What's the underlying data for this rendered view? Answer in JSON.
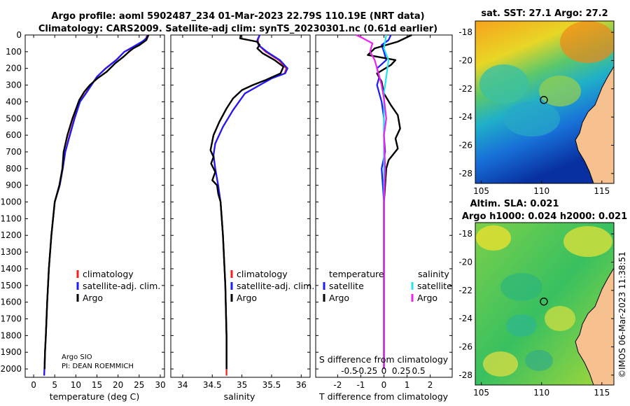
{
  "header": {
    "line1": "Argo profile: aoml 5902487_234 01-Mar-2023 22.79S 110.19E (NRT data)",
    "line2": "Climatology: CARS2009. Satellite-adj clim: synTS_20230301.nc (0.61d earlier)"
  },
  "colors": {
    "climatology": "#ff1a1a",
    "satellite_adj": "#1a1aff",
    "argo": "#000000",
    "satellite_s": "#22e4ee",
    "argo_s": "#ee22ee"
  },
  "legends": {
    "temp": [
      "climatology",
      "satellite-adj. clim.",
      "Argo"
    ],
    "sal": [
      "climatology",
      "satellite-adj. clim.",
      "Argo"
    ],
    "diff_t_header": "temperature",
    "diff_s_header": "salinity",
    "diff_t": [
      "satellite",
      "Argo"
    ],
    "diff_s": [
      "satellite",
      "Argo"
    ]
  },
  "credit": {
    "line1": "Argo SIO",
    "line2": "PI: DEAN ROEMMICH"
  },
  "sst_title": "sat. SST: 27.1 Argo: 27.2",
  "sla_title1": "Altim. SLA: 0.021",
  "sla_title2": "Argo h1000: 0.024 h2000: 0.021",
  "stamp": "©IMOS 06-Mar-2023 11:38:51",
  "chart_data": [
    {
      "type": "line",
      "id": "temperature",
      "xlabel": "temperature (deg C)",
      "ylabel": "pressure (dbar)",
      "xlim": [
        -2,
        31
      ],
      "ylim": [
        2050,
        0
      ],
      "xticks": [
        0,
        5,
        10,
        15,
        20,
        25,
        30
      ],
      "yticks": [
        0,
        100,
        200,
        300,
        400,
        500,
        600,
        700,
        800,
        900,
        1000,
        1100,
        1200,
        1300,
        1400,
        1500,
        1600,
        1700,
        1800,
        1900,
        2000
      ],
      "series": [
        {
          "name": "climatology",
          "color": "#ff1a1a",
          "x": [
            26.9,
            26.6,
            25.8,
            24.5,
            23.2,
            21.5,
            19.5,
            17.0,
            15.0,
            13.6,
            12.3,
            10.9,
            9.6,
            8.5,
            7.5,
            6.9,
            6.2,
            5.0,
            4.2,
            3.6,
            3.2,
            2.9,
            2.7,
            2.6,
            2.5
          ],
          "y": [
            0,
            20,
            40,
            60,
            80,
            100,
            150,
            200,
            250,
            300,
            350,
            400,
            500,
            600,
            700,
            800,
            900,
            1000,
            1200,
            1400,
            1600,
            1800,
            1900,
            1980,
            2040
          ]
        },
        {
          "name": "satellite-adj. clim.",
          "color": "#1a1aff",
          "x": [
            27.0,
            26.7,
            25.7,
            24.3,
            22.9,
            21.5,
            19.6,
            17.1,
            15.0,
            13.7,
            12.4,
            11.0,
            9.7,
            8.6,
            7.5,
            6.9,
            6.2,
            5.0,
            4.2,
            3.6,
            3.2,
            2.9,
            2.7,
            2.6,
            2.5
          ],
          "y": [
            0,
            20,
            40,
            60,
            80,
            100,
            150,
            200,
            250,
            300,
            350,
            400,
            500,
            600,
            700,
            800,
            900,
            1000,
            1200,
            1400,
            1600,
            1800,
            1900,
            1980,
            2040
          ]
        },
        {
          "name": "Argo",
          "color": "#000000",
          "x": [
            27.2,
            26.7,
            25.1,
            23.6,
            22.6,
            21.3,
            19.3,
            17.3,
            15.1,
            13.3,
            12.0,
            10.8,
            9.2,
            8.0,
            7.1,
            6.8,
            6.1,
            5.0,
            4.2,
            3.6,
            3.2,
            2.9,
            2.7,
            2.6
          ],
          "y": [
            0,
            30,
            60,
            80,
            100,
            130,
            170,
            220,
            260,
            300,
            340,
            390,
            500,
            600,
            700,
            800,
            900,
            1000,
            1200,
            1400,
            1600,
            1800,
            1900,
            2000
          ]
        }
      ]
    },
    {
      "type": "line",
      "id": "salinity",
      "xlabel": "salinity",
      "xlim": [
        33.8,
        36.15
      ],
      "ylim": [
        2050,
        0
      ],
      "xticks": [
        34,
        34.5,
        35,
        35.5,
        36
      ],
      "series": [
        {
          "name": "climatology",
          "color": "#ff1a1a",
          "x": [
            35.3,
            35.27,
            35.28,
            35.4,
            35.62,
            35.75,
            35.72,
            35.5,
            35.3,
            35.05,
            34.85,
            34.68,
            34.55,
            34.52,
            34.55,
            34.6,
            34.64,
            34.68,
            34.72,
            34.74,
            34.74,
            34.74
          ],
          "y": [
            0,
            30,
            60,
            100,
            150,
            200,
            230,
            260,
            300,
            350,
            450,
            550,
            650,
            720,
            800,
            900,
            1000,
            1200,
            1500,
            1800,
            2000,
            2040
          ]
        },
        {
          "name": "satellite-adj. clim.",
          "color": "#1a1aff",
          "x": [
            35.3,
            35.26,
            35.28,
            35.42,
            35.64,
            35.77,
            35.73,
            35.5,
            35.3,
            35.05,
            34.85,
            34.68,
            34.55,
            34.52,
            34.55,
            34.6,
            34.64,
            34.68,
            34.72,
            34.74,
            34.74
          ],
          "y": [
            0,
            30,
            60,
            100,
            150,
            200,
            230,
            260,
            300,
            350,
            450,
            550,
            650,
            720,
            800,
            900,
            1000,
            1200,
            1500,
            1800,
            2000
          ]
        },
        {
          "name": "Argo",
          "color": "#000000",
          "x": [
            34.98,
            34.97,
            35.25,
            35.3,
            35.26,
            35.35,
            35.55,
            35.7,
            35.65,
            35.4,
            35.18,
            35.0,
            34.85,
            34.74,
            34.62,
            34.52,
            34.47,
            34.52,
            34.48,
            34.55,
            34.5,
            34.58,
            34.6,
            34.64,
            34.68,
            34.72,
            34.74,
            34.74
          ],
          "y": [
            0,
            20,
            40,
            60,
            80,
            110,
            150,
            190,
            230,
            270,
            300,
            330,
            380,
            440,
            520,
            600,
            690,
            730,
            770,
            820,
            870,
            900,
            950,
            1000,
            1200,
            1500,
            1800,
            2000
          ]
        }
      ]
    },
    {
      "type": "line",
      "id": "difference",
      "xlabel": "T difference from climatology",
      "xlabel_top": "S difference from climatology",
      "xlim": [
        -2.95,
        2.95
      ],
      "ylim": [
        2050,
        0
      ],
      "xticks": [
        -2,
        -1,
        0,
        1,
        2
      ],
      "xticks_s_labels": [
        "-0.5",
        "-0.25",
        "0",
        "0.25",
        "0.5"
      ],
      "series": [
        {
          "name": "T satellite",
          "color": "#1a1aff",
          "x": [
            0.3,
            0.2,
            -0.1,
            0.0,
            0.1,
            -0.3,
            -0.2,
            -0.3,
            -0.1,
            0.0,
            0.0,
            0.05,
            -0.1,
            0.0,
            0.0,
            0.0,
            0.0,
            0.0
          ],
          "y": [
            0,
            30,
            60,
            100,
            150,
            200,
            250,
            300,
            400,
            500,
            600,
            700,
            800,
            1000,
            1200,
            1500,
            1800,
            2000
          ]
        },
        {
          "name": "T Argo",
          "color": "#000000",
          "x": [
            1.2,
            0.6,
            -0.4,
            -0.7,
            0.5,
            0.3,
            -0.3,
            -0.1,
            0.0,
            0.3,
            0.6,
            0.7,
            0.5,
            0.6,
            0.2,
            0.1,
            0.05,
            0.0,
            0.0,
            0.0,
            0.0
          ],
          "y": [
            0,
            40,
            80,
            120,
            150,
            180,
            230,
            280,
            350,
            420,
            480,
            560,
            620,
            680,
            750,
            800,
            900,
            1000,
            1300,
            1700,
            2000
          ]
        },
        {
          "name": "S satellite",
          "color": "#22e4ee",
          "x": [
            0.1,
            0.0,
            0.2,
            0.1,
            0.0,
            0.0,
            0.0,
            0.0,
            0.0,
            0.0,
            0.0
          ],
          "y": [
            0,
            80,
            150,
            250,
            350,
            500,
            700,
            1000,
            1400,
            1800,
            2000
          ]
        },
        {
          "name": "S Argo",
          "color": "#ee22ee",
          "x": [
            -1.2,
            -0.9,
            -0.5,
            -0.6,
            -0.4,
            -0.3,
            -0.2,
            -0.1,
            0.0,
            0.1,
            0.0,
            0.05,
            0.0,
            0.0,
            0.0,
            0.0
          ],
          "y": [
            0,
            20,
            50,
            100,
            150,
            200,
            250,
            300,
            380,
            500,
            600,
            800,
            1000,
            1400,
            1800,
            2000
          ]
        }
      ]
    },
    {
      "type": "heatmap",
      "id": "sst_map",
      "title": "sat. SST: 27.1 Argo: 27.2",
      "xlim": [
        104.5,
        116
      ],
      "ylim": [
        -28.7,
        -17.2
      ],
      "xticks": [
        105,
        110,
        115
      ],
      "yticks": [
        -18,
        -20,
        -22,
        -24,
        -26,
        -28
      ],
      "marker": {
        "lon": 110.19,
        "lat": -22.79
      }
    },
    {
      "type": "heatmap",
      "id": "sla_map",
      "title": "Altim. SLA: 0.021",
      "xlim": [
        104.5,
        116
      ],
      "ylim": [
        -28.7,
        -17.2
      ],
      "xticks": [
        105,
        110,
        115
      ],
      "yticks": [
        -18,
        -20,
        -22,
        -24,
        -26,
        -28
      ],
      "marker": {
        "lon": 110.19,
        "lat": -22.79
      }
    }
  ]
}
